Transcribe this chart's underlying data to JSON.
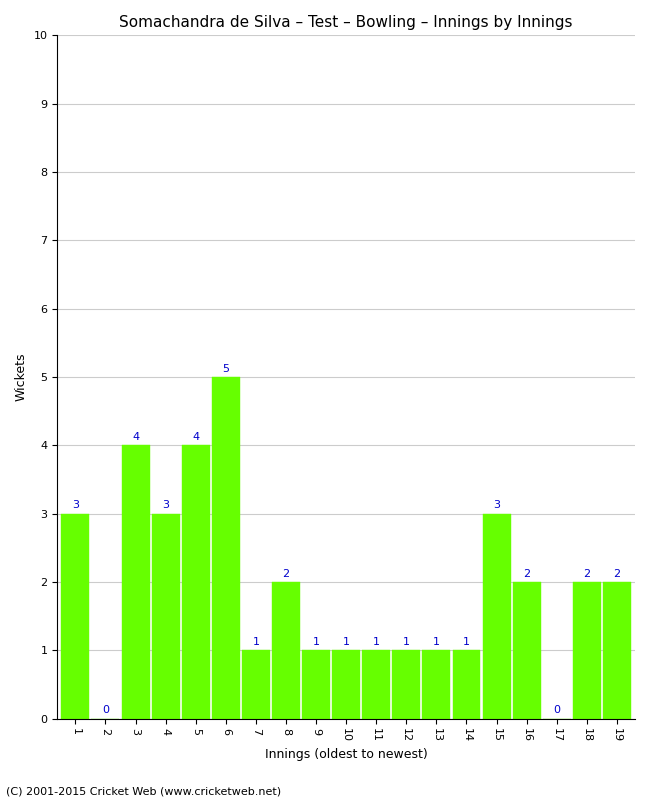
{
  "title": "Somachandra de Silva – Test – Bowling – Innings by Innings",
  "xlabel": "Innings (oldest to newest)",
  "ylabel": "Wickets",
  "categories": [
    "1",
    "2",
    "3",
    "4",
    "5",
    "6",
    "7",
    "8",
    "9",
    "10",
    "11",
    "12",
    "13",
    "14",
    "15",
    "16",
    "17",
    "18",
    "19"
  ],
  "values": [
    3,
    0,
    4,
    3,
    4,
    5,
    1,
    2,
    1,
    1,
    1,
    1,
    1,
    1,
    3,
    2,
    0,
    2,
    2
  ],
  "bar_color": "#66ff00",
  "bar_edge_color": "#66ff00",
  "annotation_color": "#0000cc",
  "ylim": [
    0,
    10
  ],
  "yticks": [
    0,
    1,
    2,
    3,
    4,
    5,
    6,
    7,
    8,
    9,
    10
  ],
  "background_color": "#ffffff",
  "grid_color": "#cccccc",
  "footer": "(C) 2001-2015 Cricket Web (www.cricketweb.net)",
  "title_fontsize": 11,
  "label_fontsize": 9,
  "tick_fontsize": 8,
  "annotation_fontsize": 8,
  "footer_fontsize": 8
}
